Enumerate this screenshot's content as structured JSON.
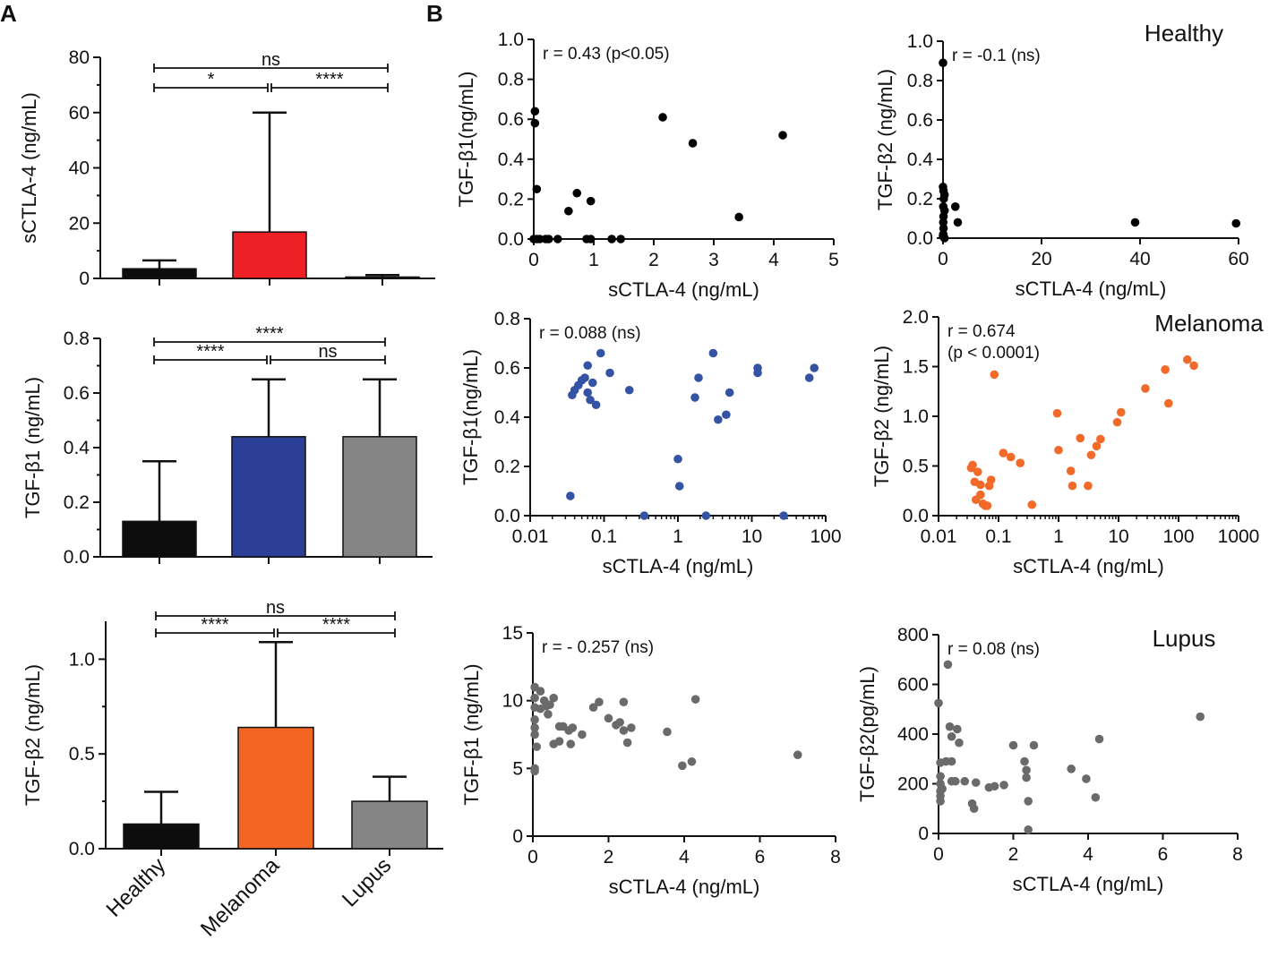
{
  "panel_labels": {
    "a": "A",
    "b": "B"
  },
  "group_labels": {
    "healthy": "Healthy",
    "melanoma": "Melanoma",
    "lupus": "Lupus"
  },
  "colors": {
    "axis": "#111111",
    "healthy_bar": "#0d0d0d",
    "melanoma_sctla4_bar": "#ee1f25",
    "melanoma_tgfb1_bar": "#2c3f96",
    "melanoma_tgfb2_bar": "#f26522",
    "lupus_bar": "#858585",
    "healthy_dots": "#000000",
    "melanoma_b1_dots": "#3453a4",
    "melanoma_b2_dots": "#f26a2a",
    "lupus_dots": "#6a6a6a"
  },
  "chart_data": [
    {
      "id": "bar_sctla4",
      "panel": "A",
      "type": "bar",
      "categories": [
        "Healthy",
        "Melanoma",
        "Lupus"
      ],
      "values": [
        3.5,
        16.8,
        0.5
      ],
      "error_upper": [
        6.5,
        60,
        1.2
      ],
      "ylabel": "sCTLA-4 (ng/mL)",
      "ylim": [
        0,
        80
      ],
      "yticks": [
        0,
        20,
        40,
        60,
        80
      ],
      "yticklabels": [
        "0",
        "20",
        "40",
        "60",
        "80"
      ],
      "minor_yticks": [
        10,
        30,
        50,
        70
      ],
      "significance": [
        {
          "from": 0,
          "to": 2,
          "level": 2,
          "label": "ns"
        },
        {
          "from": 0,
          "to": 1,
          "level": 1,
          "label": "*"
        },
        {
          "from": 1,
          "to": 2,
          "level": 1,
          "label": "****"
        }
      ]
    },
    {
      "id": "bar_tgfb1",
      "panel": "A",
      "type": "bar",
      "categories": [
        "Healthy",
        "Melanoma",
        "Lupus"
      ],
      "values": [
        0.13,
        0.44,
        0.44
      ],
      "error_upper": [
        0.35,
        0.65,
        0.65
      ],
      "ylabel": "TGF-β1 (ng/mL)",
      "ylim": [
        0,
        0.8
      ],
      "yticks": [
        0,
        0.2,
        0.4,
        0.6,
        0.8
      ],
      "yticklabels": [
        "0.0",
        "0.2",
        "0.4",
        "0.6",
        "0.8"
      ],
      "minor_yticks": [
        0.1,
        0.3,
        0.5,
        0.7
      ],
      "significance": [
        {
          "from": 0,
          "to": 2,
          "level": 2,
          "label": "****"
        },
        {
          "from": 0,
          "to": 1,
          "level": 1,
          "label": "****"
        },
        {
          "from": 1,
          "to": 2,
          "level": 1,
          "label": "ns"
        }
      ]
    },
    {
      "id": "bar_tgfb2",
      "panel": "A",
      "type": "bar",
      "categories": [
        "Healthy",
        "Melanoma",
        "Lupus"
      ],
      "values": [
        0.13,
        0.64,
        0.25
      ],
      "error_upper": [
        0.3,
        1.09,
        0.38
      ],
      "ylabel": "TGF-β2 (ng/mL)",
      "ylim": [
        0,
        1.2
      ],
      "yticks": [
        0,
        0.5,
        1.0
      ],
      "yticklabels": [
        "0.0",
        "0.5",
        "1.0"
      ],
      "minor_yticks": [
        0.25,
        0.75
      ],
      "significance": [
        {
          "from": 0,
          "to": 2,
          "level": 2,
          "label": "ns"
        },
        {
          "from": 0,
          "to": 1,
          "level": 1,
          "label": "****"
        },
        {
          "from": 1,
          "to": 2,
          "level": 1,
          "label": "****"
        }
      ]
    },
    {
      "id": "sc_healthy_b1",
      "panel": "B",
      "type": "scatter",
      "scale": "linear",
      "xlabel": "sCTLA-4 (ng/mL)",
      "ylabel": "TGF-β1(ng/mL)",
      "xlim": [
        0,
        5
      ],
      "ylim": [
        0,
        1.0
      ],
      "xticks": [
        0,
        1,
        2,
        3,
        4,
        5
      ],
      "xticklabels": [
        "0",
        "1",
        "2",
        "3",
        "4",
        "5"
      ],
      "yticks": [
        0,
        0.2,
        0.4,
        0.6,
        0.8,
        1.0
      ],
      "yticklabels": [
        "0.0",
        "0.2",
        "0.4",
        "0.6",
        "0.8",
        "1.0"
      ],
      "annotation": [
        "r = 0.43 (p<0.05)"
      ],
      "group_label_key": "",
      "color_key": "healthy_dots",
      "points": [
        [
          0.02,
          0.64
        ],
        [
          0.02,
          0.58
        ],
        [
          0.05,
          0.25
        ],
        [
          0.0,
          0.0
        ],
        [
          0.05,
          0.0
        ],
        [
          0.1,
          0.0
        ],
        [
          0.2,
          0.0
        ],
        [
          0.25,
          0.0
        ],
        [
          0.4,
          0.0
        ],
        [
          0.58,
          0.14
        ],
        [
          0.72,
          0.23
        ],
        [
          0.95,
          0.19
        ],
        [
          0.88,
          0.0
        ],
        [
          0.95,
          0.0
        ],
        [
          1.3,
          0.0
        ],
        [
          1.45,
          0.0
        ],
        [
          2.15,
          0.61
        ],
        [
          2.65,
          0.48
        ],
        [
          3.42,
          0.11
        ],
        [
          4.15,
          0.52
        ]
      ]
    },
    {
      "id": "sc_healthy_b2",
      "panel": "B",
      "type": "scatter",
      "scale": "linear",
      "xlabel": "sCTLA-4 (ng/mL)",
      "ylabel": "TGF-β2 (ng/mL)",
      "xlim": [
        0,
        60
      ],
      "ylim": [
        0,
        1.0
      ],
      "xticks": [
        0,
        20,
        40,
        60
      ],
      "xticklabels": [
        "0",
        "20",
        "40",
        "60"
      ],
      "yticks": [
        0,
        0.2,
        0.4,
        0.6,
        0.8,
        1.0
      ],
      "yticklabels": [
        "0.0",
        "0.2",
        "0.4",
        "0.6",
        "0.8",
        "1.0"
      ],
      "annotation": [
        "r = -0.1 (ns)"
      ],
      "group_label_key": "healthy",
      "color_key": "healthy_dots",
      "points": [
        [
          0.0,
          0.89
        ],
        [
          0.0,
          0.26
        ],
        [
          0.1,
          0.24
        ],
        [
          0.3,
          0.22
        ],
        [
          0.15,
          0.2
        ],
        [
          0.05,
          0.16
        ],
        [
          0.3,
          0.14
        ],
        [
          0.1,
          0.11
        ],
        [
          0.05,
          0.08
        ],
        [
          0.1,
          0.05
        ],
        [
          0.05,
          0.02
        ],
        [
          0.3,
          0.0
        ],
        [
          0.0,
          0.01
        ],
        [
          2.5,
          0.16
        ],
        [
          3.0,
          0.08
        ],
        [
          39,
          0.08
        ],
        [
          59.5,
          0.075
        ]
      ]
    },
    {
      "id": "sc_melanoma_b1",
      "panel": "B",
      "type": "scatter",
      "scale": "log",
      "xlabel": "sCTLA-4 (ng/mL)",
      "ylabel": "TGF-β1(ng/mL)",
      "xlim": [
        0.01,
        100
      ],
      "ylim": [
        0,
        0.8
      ],
      "xticks": [
        0.01,
        0.1,
        1,
        10,
        100
      ],
      "xticklabels": [
        "0.01",
        "0.1",
        "1",
        "10",
        "100"
      ],
      "yticks": [
        0,
        0.2,
        0.4,
        0.6,
        0.8
      ],
      "yticklabels": [
        "0.0",
        "0.2",
        "0.4",
        "0.6",
        "0.8"
      ],
      "annotation": [
        "r = 0.088 (ns)"
      ],
      "group_label_key": "",
      "color_key": "melanoma_b1_dots",
      "points": [
        [
          0.035,
          0.08
        ],
        [
          0.037,
          0.49
        ],
        [
          0.04,
          0.51
        ],
        [
          0.045,
          0.53
        ],
        [
          0.05,
          0.55
        ],
        [
          0.055,
          0.56
        ],
        [
          0.06,
          0.61
        ],
        [
          0.06,
          0.5
        ],
        [
          0.065,
          0.47
        ],
        [
          0.07,
          0.54
        ],
        [
          0.078,
          0.45
        ],
        [
          0.09,
          0.66
        ],
        [
          0.12,
          0.58
        ],
        [
          0.22,
          0.51
        ],
        [
          0.35,
          0.0
        ],
        [
          1.0,
          0.23
        ],
        [
          1.05,
          0.12
        ],
        [
          1.7,
          0.48
        ],
        [
          1.9,
          0.56
        ],
        [
          2.4,
          0.0
        ],
        [
          3.0,
          0.66
        ],
        [
          3.5,
          0.39
        ],
        [
          4.5,
          0.41
        ],
        [
          5.0,
          0.5
        ],
        [
          12,
          0.6
        ],
        [
          12,
          0.58
        ],
        [
          27,
          0.0
        ],
        [
          60,
          0.56
        ],
        [
          70,
          0.6
        ]
      ]
    },
    {
      "id": "sc_melanoma_b2",
      "panel": "B",
      "type": "scatter",
      "scale": "log",
      "xlabel": "sCTLA-4 (ng/mL)",
      "ylabel": "TGF-β2 (ng/mL)",
      "xlim": [
        0.01,
        1000
      ],
      "ylim": [
        0,
        2.0
      ],
      "xticks": [
        0.01,
        0.1,
        1,
        10,
        100,
        1000
      ],
      "xticklabels": [
        "0.01",
        "0.1",
        "1",
        "10",
        "100",
        "1000"
      ],
      "yticks": [
        0,
        0.5,
        1.0,
        1.5,
        2.0
      ],
      "yticklabels": [
        "0.0",
        "0.5",
        "1.0",
        "1.5",
        "2.0"
      ],
      "annotation": [
        "r = 0.674",
        "(p < 0.0001)"
      ],
      "group_label_key": "melanoma",
      "color_key": "melanoma_b2_dots",
      "points": [
        [
          0.035,
          0.48
        ],
        [
          0.037,
          0.51
        ],
        [
          0.04,
          0.34
        ],
        [
          0.042,
          0.16
        ],
        [
          0.045,
          0.44
        ],
        [
          0.05,
          0.21
        ],
        [
          0.05,
          0.31
        ],
        [
          0.055,
          0.12
        ],
        [
          0.06,
          0.1
        ],
        [
          0.065,
          0.1
        ],
        [
          0.07,
          0.3
        ],
        [
          0.075,
          0.36
        ],
        [
          0.085,
          1.42
        ],
        [
          0.12,
          0.63
        ],
        [
          0.16,
          0.59
        ],
        [
          0.23,
          0.53
        ],
        [
          0.36,
          0.11
        ],
        [
          0.95,
          1.03
        ],
        [
          1.0,
          0.66
        ],
        [
          1.6,
          0.45
        ],
        [
          1.7,
          0.3
        ],
        [
          2.3,
          0.78
        ],
        [
          3.1,
          0.3
        ],
        [
          3.5,
          0.61
        ],
        [
          4.3,
          0.7
        ],
        [
          5.0,
          0.77
        ],
        [
          9.5,
          0.94
        ],
        [
          11,
          1.04
        ],
        [
          28,
          1.28
        ],
        [
          60,
          1.47
        ],
        [
          68,
          1.13
        ],
        [
          140,
          1.57
        ],
        [
          180,
          1.51
        ]
      ]
    },
    {
      "id": "sc_lupus_b1",
      "panel": "B",
      "type": "scatter",
      "scale": "linear",
      "xlabel": "sCTLA-4 (ng/mL)",
      "ylabel": "TGF-β1 (ng/mL)",
      "xlim": [
        0,
        8
      ],
      "ylim": [
        0,
        15
      ],
      "xticks": [
        0,
        2,
        4,
        6,
        8
      ],
      "xticklabels": [
        "0",
        "2",
        "4",
        "6",
        "8"
      ],
      "yticks": [
        0,
        5,
        10,
        15
      ],
      "yticklabels": [
        "0",
        "5",
        "10",
        "15"
      ],
      "annotation": [
        "r = - 0.257 (ns)"
      ],
      "group_label_key": "",
      "color_key": "lupus_dots",
      "points": [
        [
          0.05,
          11.0
        ],
        [
          0.05,
          10.2
        ],
        [
          0.05,
          9.5
        ],
        [
          0.05,
          8.6
        ],
        [
          0.05,
          8.0
        ],
        [
          0.05,
          7.5
        ],
        [
          0.1,
          6.6
        ],
        [
          0.05,
          5.0
        ],
        [
          0.05,
          4.8
        ],
        [
          0.2,
          10.7
        ],
        [
          0.2,
          9.4
        ],
        [
          0.3,
          10.0
        ],
        [
          0.35,
          9.6
        ],
        [
          0.4,
          9.0
        ],
        [
          0.45,
          9.7
        ],
        [
          0.55,
          10.2
        ],
        [
          0.55,
          6.8
        ],
        [
          0.7,
          8.1
        ],
        [
          0.7,
          7.0
        ],
        [
          0.8,
          8.1
        ],
        [
          0.95,
          7.8
        ],
        [
          1.0,
          6.8
        ],
        [
          1.05,
          8.0
        ],
        [
          1.3,
          7.5
        ],
        [
          1.6,
          9.5
        ],
        [
          1.75,
          9.9
        ],
        [
          2.0,
          8.7
        ],
        [
          2.2,
          8.2
        ],
        [
          2.3,
          8.4
        ],
        [
          2.4,
          9.9
        ],
        [
          2.4,
          7.8
        ],
        [
          2.5,
          6.9
        ],
        [
          2.6,
          8.0
        ],
        [
          3.55,
          7.7
        ],
        [
          3.95,
          5.2
        ],
        [
          4.2,
          5.5
        ],
        [
          4.3,
          10.1
        ],
        [
          7.0,
          6.0
        ]
      ]
    },
    {
      "id": "sc_lupus_b2",
      "panel": "B",
      "type": "scatter",
      "scale": "linear",
      "xlabel": "sCTLA-4 (ng/mL)",
      "ylabel": "TGF-β2(pg/mL)",
      "xlim": [
        0,
        8
      ],
      "ylim": [
        0,
        800
      ],
      "xticks": [
        0,
        2,
        4,
        6,
        8
      ],
      "xticklabels": [
        "0",
        "2",
        "4",
        "6",
        "8"
      ],
      "yticks": [
        0,
        200,
        400,
        600,
        800
      ],
      "yticklabels": [
        "0",
        "200",
        "400",
        "600",
        "800"
      ],
      "annotation": [
        "r = 0.08 (ns)"
      ],
      "group_label_key": "lupus",
      "color_key": "lupus_dots",
      "points": [
        [
          0.0,
          525
        ],
        [
          0.05,
          285
        ],
        [
          0.05,
          230
        ],
        [
          0.05,
          200
        ],
        [
          0.05,
          170
        ],
        [
          0.05,
          150
        ],
        [
          0.05,
          130
        ],
        [
          0.1,
          180
        ],
        [
          0.2,
          290
        ],
        [
          0.25,
          680
        ],
        [
          0.3,
          430
        ],
        [
          0.35,
          390
        ],
        [
          0.35,
          290
        ],
        [
          0.35,
          210
        ],
        [
          0.45,
          210
        ],
        [
          0.5,
          420
        ],
        [
          0.55,
          365
        ],
        [
          0.7,
          210
        ],
        [
          0.9,
          120
        ],
        [
          0.95,
          100
        ],
        [
          1.0,
          205
        ],
        [
          1.35,
          185
        ],
        [
          1.5,
          190
        ],
        [
          1.75,
          195
        ],
        [
          2.0,
          355
        ],
        [
          2.3,
          290
        ],
        [
          2.35,
          255
        ],
        [
          2.35,
          225
        ],
        [
          2.4,
          130
        ],
        [
          2.4,
          15
        ],
        [
          2.55,
          355
        ],
        [
          3.55,
          260
        ],
        [
          3.95,
          220
        ],
        [
          4.2,
          145
        ],
        [
          4.3,
          380
        ],
        [
          7.0,
          470
        ]
      ]
    }
  ]
}
